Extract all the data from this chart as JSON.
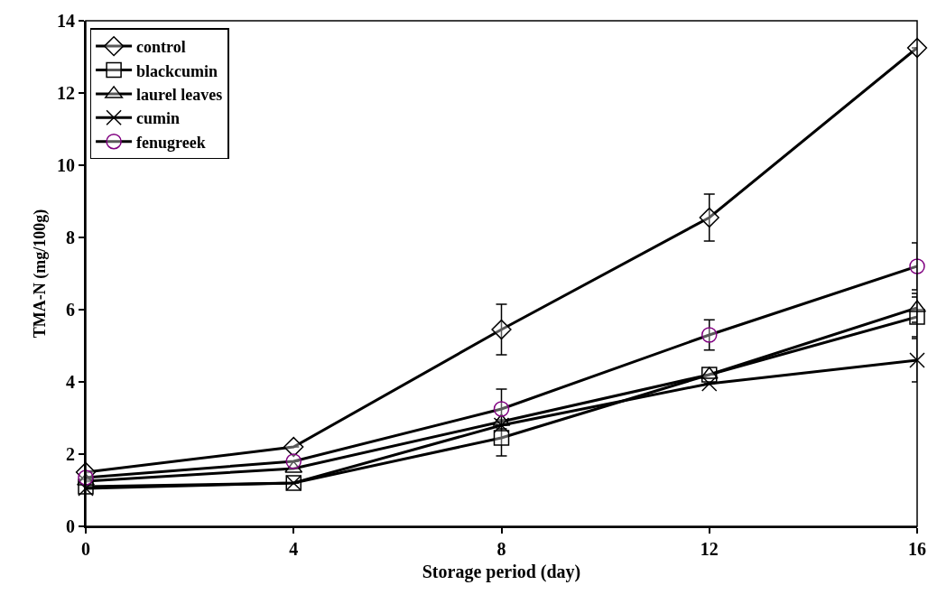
{
  "chart_data": {
    "type": "line",
    "xlabel": "Storage period (day)",
    "ylabel": "TMA-N (mg/100g)",
    "x": [
      0,
      4,
      8,
      12,
      16
    ],
    "xlim": [
      0,
      16
    ],
    "xticks": [
      0,
      4,
      8,
      12,
      16
    ],
    "ylim": [
      0,
      14
    ],
    "yticks": [
      0,
      2,
      4,
      6,
      8,
      10,
      12,
      14
    ],
    "legend": "top left",
    "line_style": "solid",
    "series": [
      {
        "name": "control",
        "color": "#000000",
        "marker": "diamond",
        "values": [
          1.5,
          2.2,
          5.45,
          8.55,
          13.25
        ],
        "errors": [
          null,
          null,
          0.7,
          0.65,
          null
        ]
      },
      {
        "name": "blackcumin",
        "color": "#000000",
        "marker": "square",
        "values": [
          1.1,
          1.2,
          2.45,
          4.2,
          5.8
        ],
        "errors": [
          null,
          null,
          0.5,
          null,
          0.55
        ]
      },
      {
        "name": "laurel leaves",
        "color": "#000000",
        "marker": "triangle",
        "values": [
          1.25,
          1.6,
          2.9,
          4.2,
          6.05
        ],
        "errors": [
          null,
          null,
          null,
          null,
          0.4
        ]
      },
      {
        "name": "cumin",
        "color": "#000000",
        "marker": "cross",
        "values": [
          1.05,
          1.2,
          2.8,
          3.95,
          4.6
        ],
        "errors": [
          null,
          null,
          null,
          null,
          0.6
        ]
      },
      {
        "name": "fenugreek",
        "color": "#800080",
        "marker": "circle",
        "values": [
          1.35,
          1.8,
          3.25,
          5.3,
          7.2
        ],
        "errors": [
          null,
          null,
          0.55,
          0.42,
          0.65
        ]
      }
    ]
  }
}
